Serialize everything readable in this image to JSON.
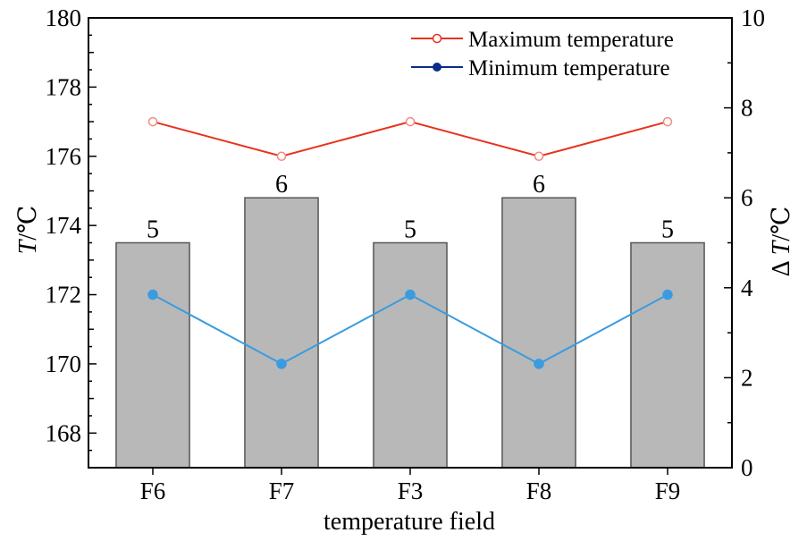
{
  "chart_data": {
    "type": "bar+line",
    "categories": [
      "F6",
      "F7",
      "F3",
      "F8",
      "F9"
    ],
    "xlabel": "temperature field",
    "ylabel_left": {
      "symbol": "T",
      "unit": "/℃"
    },
    "ylabel_right": {
      "prefix": "Δ",
      "symbol": "T",
      "unit": "/℃"
    },
    "ylim_left": [
      167,
      180
    ],
    "yticks_left": [
      168,
      170,
      172,
      174,
      176,
      178,
      180
    ],
    "ylim_right": [
      0,
      10
    ],
    "yticks_right": [
      0,
      2,
      4,
      6,
      8,
      10
    ],
    "bars": {
      "axis": "right",
      "values": [
        5,
        6,
        5,
        6,
        5
      ],
      "labels": [
        "5",
        "6",
        "5",
        "6",
        "5"
      ],
      "color": "#b8b8b8",
      "edge_color": "#555555"
    },
    "series": [
      {
        "name": "Maximum temperature",
        "axis": "left",
        "values": [
          177,
          176,
          177,
          176,
          177
        ],
        "color": "#e8321e",
        "marker": "open-circle"
      },
      {
        "name": "Minimum temperature",
        "axis": "left",
        "values": [
          172,
          170,
          172,
          170,
          172
        ],
        "color": "#3a9be0",
        "legend_color": "#0a2d8c",
        "marker": "filled-circle"
      }
    ],
    "legend_position": "top-right",
    "grid": false
  }
}
